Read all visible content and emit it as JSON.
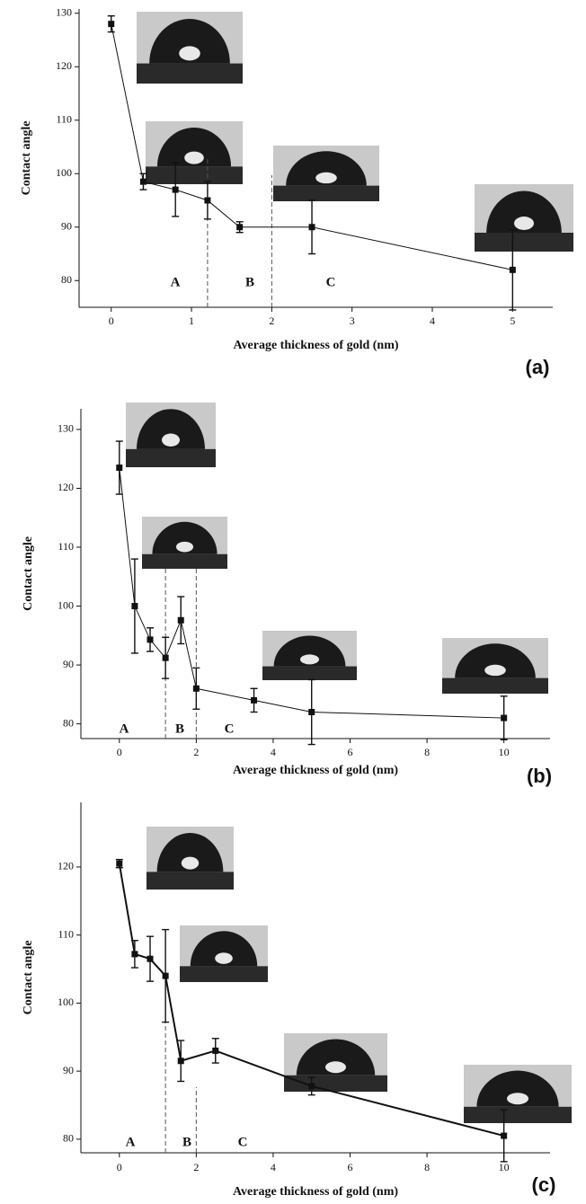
{
  "chart_data": [
    {
      "type": "line",
      "xlabel": "Average thickness of gold (nm)",
      "ylabel": "Contact angle",
      "label": "(a)",
      "xlim": [
        -0.4,
        5.5
      ],
      "ylim": [
        75,
        130.8
      ],
      "xticks": [
        0,
        1,
        2,
        3,
        4,
        5
      ],
      "yticks": [
        80,
        90,
        100,
        110,
        120,
        130
      ],
      "vlines": [
        1.2,
        2
      ],
      "annotations": [
        "A",
        "B",
        "C"
      ],
      "series": [
        {
          "x": [
            0,
            0.4,
            0.8,
            1.2,
            1.6,
            2.5,
            5
          ],
          "values": [
            128,
            98.5,
            97,
            95,
            90,
            90,
            82
          ],
          "errors": [
            1.5,
            1.5,
            5,
            3.5,
            1,
            5,
            7.5
          ],
          "color": "#111111"
        }
      ]
    },
    {
      "type": "line",
      "xlabel": "Average thickness of gold (nm)",
      "ylabel": "Contact angle",
      "label": "(b)",
      "xlim": [
        -1,
        11.2
      ],
      "ylim": [
        77.5,
        133.5
      ],
      "xticks": [
        0,
        2,
        4,
        6,
        8,
        10
      ],
      "yticks": [
        80,
        90,
        100,
        110,
        120,
        130
      ],
      "vlines": [
        1.2,
        2
      ],
      "annotations": [
        "A",
        "B",
        "C"
      ],
      "series": [
        {
          "x": [
            0,
            0.4,
            0.8,
            1.2,
            1.6,
            2,
            3.5,
            5,
            10
          ],
          "values": [
            123.5,
            100,
            94.3,
            91.2,
            97.6,
            86,
            84,
            82,
            81
          ],
          "errors": [
            4.5,
            8,
            2,
            3.5,
            4,
            3.5,
            2,
            5.5,
            3.7
          ],
          "color": "#111111"
        }
      ]
    },
    {
      "type": "line",
      "xlabel": "Average thickness of gold (nm)",
      "ylabel": "Contact angle",
      "label": "(c)",
      "xlim": [
        -1,
        11.2
      ],
      "ylim": [
        78,
        129.5
      ],
      "xticks": [
        0,
        2,
        4,
        6,
        8,
        10
      ],
      "yticks": [
        80,
        90,
        100,
        110,
        120
      ],
      "vlines": [
        1.2,
        2
      ],
      "annotations": [
        "A",
        "B",
        "C"
      ],
      "series": [
        {
          "x": [
            0,
            0.4,
            0.8,
            1.2,
            1.6,
            2.5,
            5,
            10
          ],
          "values": [
            120.5,
            107.2,
            106.5,
            104,
            91.5,
            93,
            87.8,
            80.5
          ],
          "errors": [
            0.6,
            2,
            3.3,
            6.8,
            3,
            1.8,
            1.3,
            3.8
          ],
          "color": "#111111"
        }
      ]
    }
  ]
}
